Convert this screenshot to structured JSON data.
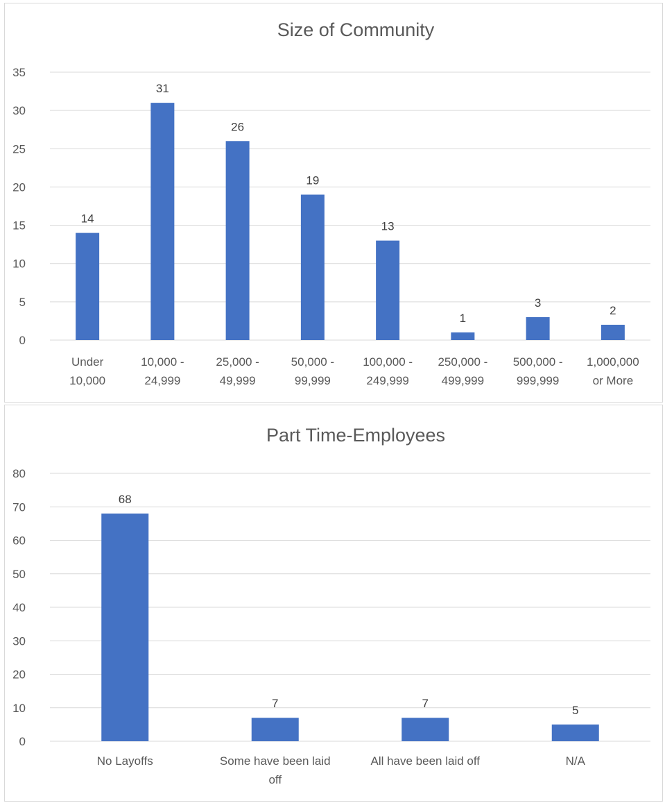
{
  "colors": {
    "bar": "#4472c4",
    "grid": "#d9d9d9",
    "text": "#595959"
  },
  "chart_data": [
    {
      "type": "bar",
      "title": "Size of Community",
      "xlabel": "",
      "ylabel": "",
      "categories": [
        [
          "Under",
          "10,000"
        ],
        [
          "10,000 -",
          "24,999"
        ],
        [
          "25,000 -",
          "49,999"
        ],
        [
          "50,000 -",
          "99,999"
        ],
        [
          "100,000 -",
          "249,999"
        ],
        [
          "250,000 -",
          "499,999"
        ],
        [
          "500,000 -",
          "999,999"
        ],
        [
          "1,000,000",
          "or More"
        ]
      ],
      "values": [
        14,
        31,
        26,
        19,
        13,
        1,
        3,
        2
      ],
      "data_labels": [
        "14",
        "31",
        "26",
        "19",
        "13",
        "1",
        "3",
        "2"
      ],
      "ylim": [
        0,
        35
      ],
      "yticks": [
        0,
        5,
        10,
        15,
        20,
        25,
        30,
        35
      ],
      "grid": true,
      "legend": "none"
    },
    {
      "type": "bar",
      "title": "Part Time-Employees",
      "xlabel": "",
      "ylabel": "",
      "categories": [
        [
          "No Layoffs"
        ],
        [
          "Some have been laid",
          "off"
        ],
        [
          "All have been laid off"
        ],
        [
          "N/A"
        ]
      ],
      "values": [
        68,
        7,
        7,
        5
      ],
      "data_labels": [
        "68",
        "7",
        "7",
        "5"
      ],
      "ylim": [
        0,
        80
      ],
      "yticks": [
        0,
        10,
        20,
        30,
        40,
        50,
        60,
        70,
        80
      ],
      "grid": true,
      "legend": "none"
    }
  ]
}
